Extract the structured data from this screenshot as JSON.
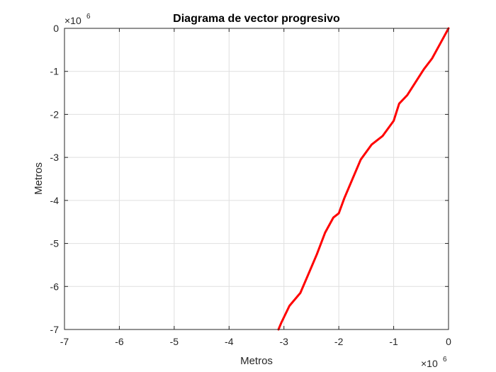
{
  "chart_data": {
    "type": "line",
    "title": "Diagrama de vector progresivo",
    "xlabel": "Metros",
    "ylabel": "Metros",
    "x_multiplier": {
      "base": "×10",
      "exponent": "6"
    },
    "y_multiplier": {
      "base": "×10",
      "exponent": "6"
    },
    "xlim": [
      -7,
      0
    ],
    "ylim": [
      -7,
      0
    ],
    "x_ticks": [
      -7,
      -6,
      -5,
      -4,
      -3,
      -2,
      -1,
      0
    ],
    "y_ticks": [
      0,
      -1,
      -2,
      -3,
      -4,
      -5,
      -6,
      -7
    ],
    "x_tick_labels": [
      "-7",
      "-6",
      "-5",
      "-4",
      "-3",
      "-2",
      "-1",
      "0"
    ],
    "y_tick_labels": [
      "0",
      "-1",
      "-2",
      "-3",
      "-4",
      "-5",
      "-6",
      "-7"
    ],
    "grid": true,
    "series": [
      {
        "color": "#ff0000",
        "x": [
          0,
          -0.15,
          -0.3,
          -0.45,
          -0.6,
          -0.75,
          -0.9,
          -1.0,
          -1.2,
          -1.4,
          -1.6,
          -1.75,
          -1.9,
          -2.0,
          -2.1,
          -2.25,
          -2.4,
          -2.55,
          -2.7,
          -2.9,
          -3.05,
          -3.1
        ],
        "y": [
          0,
          -0.35,
          -0.7,
          -0.95,
          -1.25,
          -1.55,
          -1.75,
          -2.15,
          -2.5,
          -2.7,
          -3.05,
          -3.5,
          -3.95,
          -4.3,
          -4.4,
          -4.75,
          -5.25,
          -5.7,
          -6.15,
          -6.45,
          -6.85,
          -7.0
        ]
      }
    ]
  }
}
